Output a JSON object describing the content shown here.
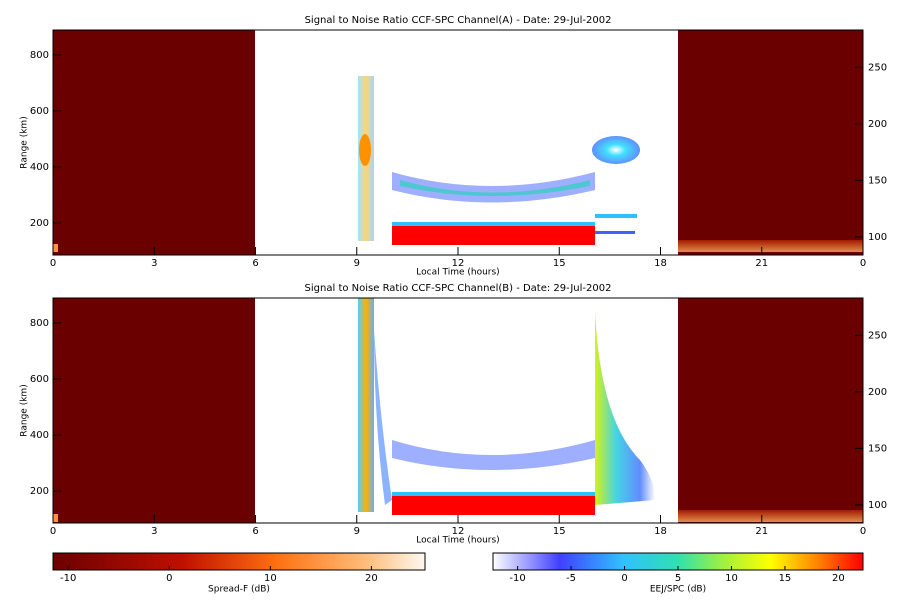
{
  "chart_data": [
    {
      "type": "heatmap",
      "title": "Signal to Noise Ratio CCF-SPC Channel(A) - Date: 29-Jul-2002",
      "xlabel": "Local Time (hours)",
      "ylabel": "Range (km)",
      "xlim": [
        0,
        24
      ],
      "xticks": [
        0,
        3,
        6,
        9,
        12,
        15,
        18,
        21,
        {
          "value": 24,
          "label": "0"
        }
      ],
      "ylim": [
        86,
        889
      ],
      "yticks": [
        200,
        400,
        600,
        800
      ],
      "y2lim": [
        84,
        283
      ],
      "y2ticks": [
        100,
        150,
        200,
        250
      ]
    },
    {
      "type": "heatmap",
      "title": "Signal to Noise Ratio CCF-SPC Channel(B) - Date: 29-Jul-2002",
      "xlabel": "Local Time (hours)",
      "ylabel": "Range (km)",
      "xlim": [
        0,
        24
      ],
      "xticks": [
        0,
        3,
        6,
        9,
        12,
        15,
        18,
        21,
        {
          "value": 24,
          "label": "0"
        }
      ],
      "ylim": [
        86,
        889
      ],
      "yticks": [
        200,
        400,
        600,
        800
      ],
      "y2lim": [
        84,
        283
      ],
      "y2ticks": [
        100,
        150,
        200,
        250
      ]
    },
    {
      "type": "colorbar",
      "label": "Spread-F (dB)",
      "lim": [
        -11.5,
        25.3
      ],
      "ticks": [
        -10,
        0,
        10,
        20
      ]
    },
    {
      "type": "colorbar",
      "label": "EEJ/SPC (dB)",
      "lim": [
        -12.3,
        22.3
      ],
      "ticks": [
        -10,
        -5,
        0,
        5,
        10,
        15,
        20
      ]
    }
  ]
}
